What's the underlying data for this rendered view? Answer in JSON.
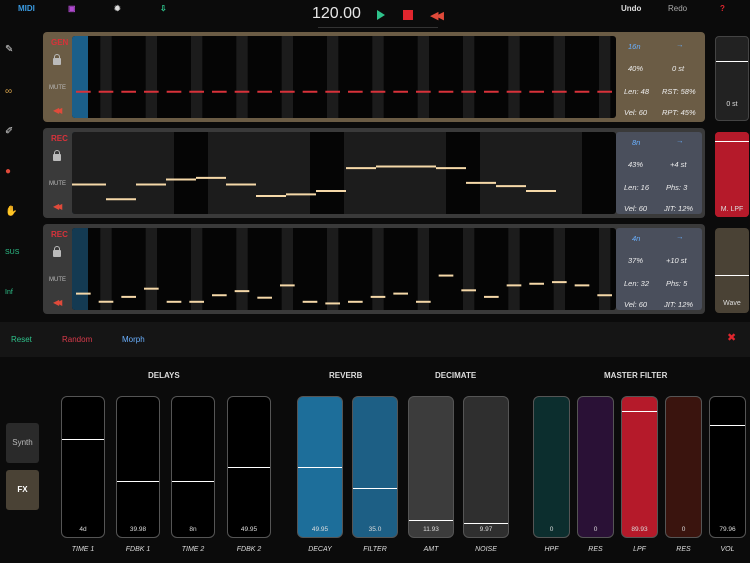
{
  "topbar": {
    "midi": "MIDI",
    "bpm": "120.00",
    "undo": "Undo",
    "redo": "Redo",
    "help": "?",
    "icons": [
      "save-icon",
      "gear-icon",
      "download-icon"
    ]
  },
  "sidebar": {
    "sus": "SUS",
    "inf": "Inf",
    "icons": [
      "wrench-icon",
      "link-icon",
      "dropper-icon",
      "globe-icon",
      "hand-icon"
    ]
  },
  "tracks": [
    {
      "name": "GEN",
      "mute": "MUTE",
      "rate": "16n",
      "prob": "40%",
      "transpose": "0 st",
      "len": "Len: 48",
      "rst": "RST: 58%",
      "vel": "Vel: 60",
      "rpt": "RPT: 45%",
      "levels": [
        0.32,
        0.32,
        0.32,
        0.32,
        0.32,
        0.32,
        0.32,
        0.32,
        0.32,
        0.32,
        0.32,
        0.32,
        0.32,
        0.32,
        0.32,
        0.32,
        0.32,
        0.32,
        0.32,
        0.32,
        0.32,
        0.32,
        0.32,
        0.32
      ]
    },
    {
      "name": "REC",
      "mute": "MUTE",
      "rate": "8n",
      "prob": "43%",
      "transpose": "+4 st",
      "len": "Len: 16",
      "phs": "Phs: 3",
      "vel": "Vel: 60",
      "jit": "JIT: 12%",
      "levels": [
        0.36,
        0.18,
        0.36,
        0.42,
        0.44,
        0.36,
        0.22,
        0.24,
        0.28,
        0.56,
        0.58,
        0.58,
        0.56,
        0.38,
        0.34,
        0.28
      ]
    },
    {
      "name": "REC",
      "mute": "MUTE",
      "rate": "4n",
      "prob": "37%",
      "transpose": "+10 st",
      "len": "Len: 32",
      "phs": "Phs: 5",
      "vel": "Vel: 60",
      "jit": "JIT: 12%",
      "levels": [
        0.2,
        0.1,
        0.16,
        0.26,
        0.1,
        0.1,
        0.18,
        0.23,
        0.15,
        0.3,
        0.1,
        0.08,
        0.1,
        0.16,
        0.2,
        0.1,
        0.42,
        0.24,
        0.16,
        0.3,
        0.32,
        0.34,
        0.3,
        0.18
      ]
    }
  ],
  "knobs": [
    {
      "label": "0 st",
      "level": 0.72,
      "color": "#222"
    },
    {
      "label": "M. LPF",
      "level": 0.9,
      "color": "#b51a2a"
    },
    {
      "label": "Wave",
      "level": 0.45,
      "color": "#4a4235"
    }
  ],
  "modbar": {
    "reset": "Reset",
    "random": "Random",
    "morph": "Morph",
    "close": "✖"
  },
  "fx": {
    "sections": [
      "DELAYS",
      "REVERB",
      "DECIMATE",
      "MASTER FILTER"
    ],
    "modes": [
      "Synth",
      "FX"
    ],
    "sliders": [
      {
        "label": "TIME 1",
        "value": "4d",
        "level": 0.7,
        "color": "#000000"
      },
      {
        "label": "FDBK 1",
        "value": "39.98",
        "level": 0.4,
        "color": "#000000"
      },
      {
        "label": "TIME 2",
        "value": "8n",
        "level": 0.4,
        "color": "#000000"
      },
      {
        "label": "FDBK 2",
        "value": "49.95",
        "level": 0.5,
        "color": "#000000"
      },
      {
        "label": "DECAY",
        "value": "49.95",
        "level": 0.5,
        "color": "#1d6e9a"
      },
      {
        "label": "FILTER",
        "value": "35.0",
        "level": 0.35,
        "color": "#1d5f85"
      },
      {
        "label": "AMT",
        "value": "11.93",
        "level": 0.12,
        "color": "#3c3c3c"
      },
      {
        "label": "NOISE",
        "value": "9.97",
        "level": 0.1,
        "color": "#2f2f2f"
      },
      {
        "label": "HPF",
        "value": "0",
        "level": 0.0,
        "color": "#0c2e2e"
      },
      {
        "label": "RES",
        "value": "0",
        "level": 0.0,
        "color": "#2a1136"
      },
      {
        "label": "LPF",
        "value": "89.93",
        "level": 0.9,
        "color": "#b51a2a"
      },
      {
        "label": "RES",
        "value": "0",
        "level": 0.0,
        "color": "#3a140e"
      },
      {
        "label": "VOL",
        "value": "79.96",
        "level": 0.8,
        "color": "#000000"
      }
    ]
  }
}
